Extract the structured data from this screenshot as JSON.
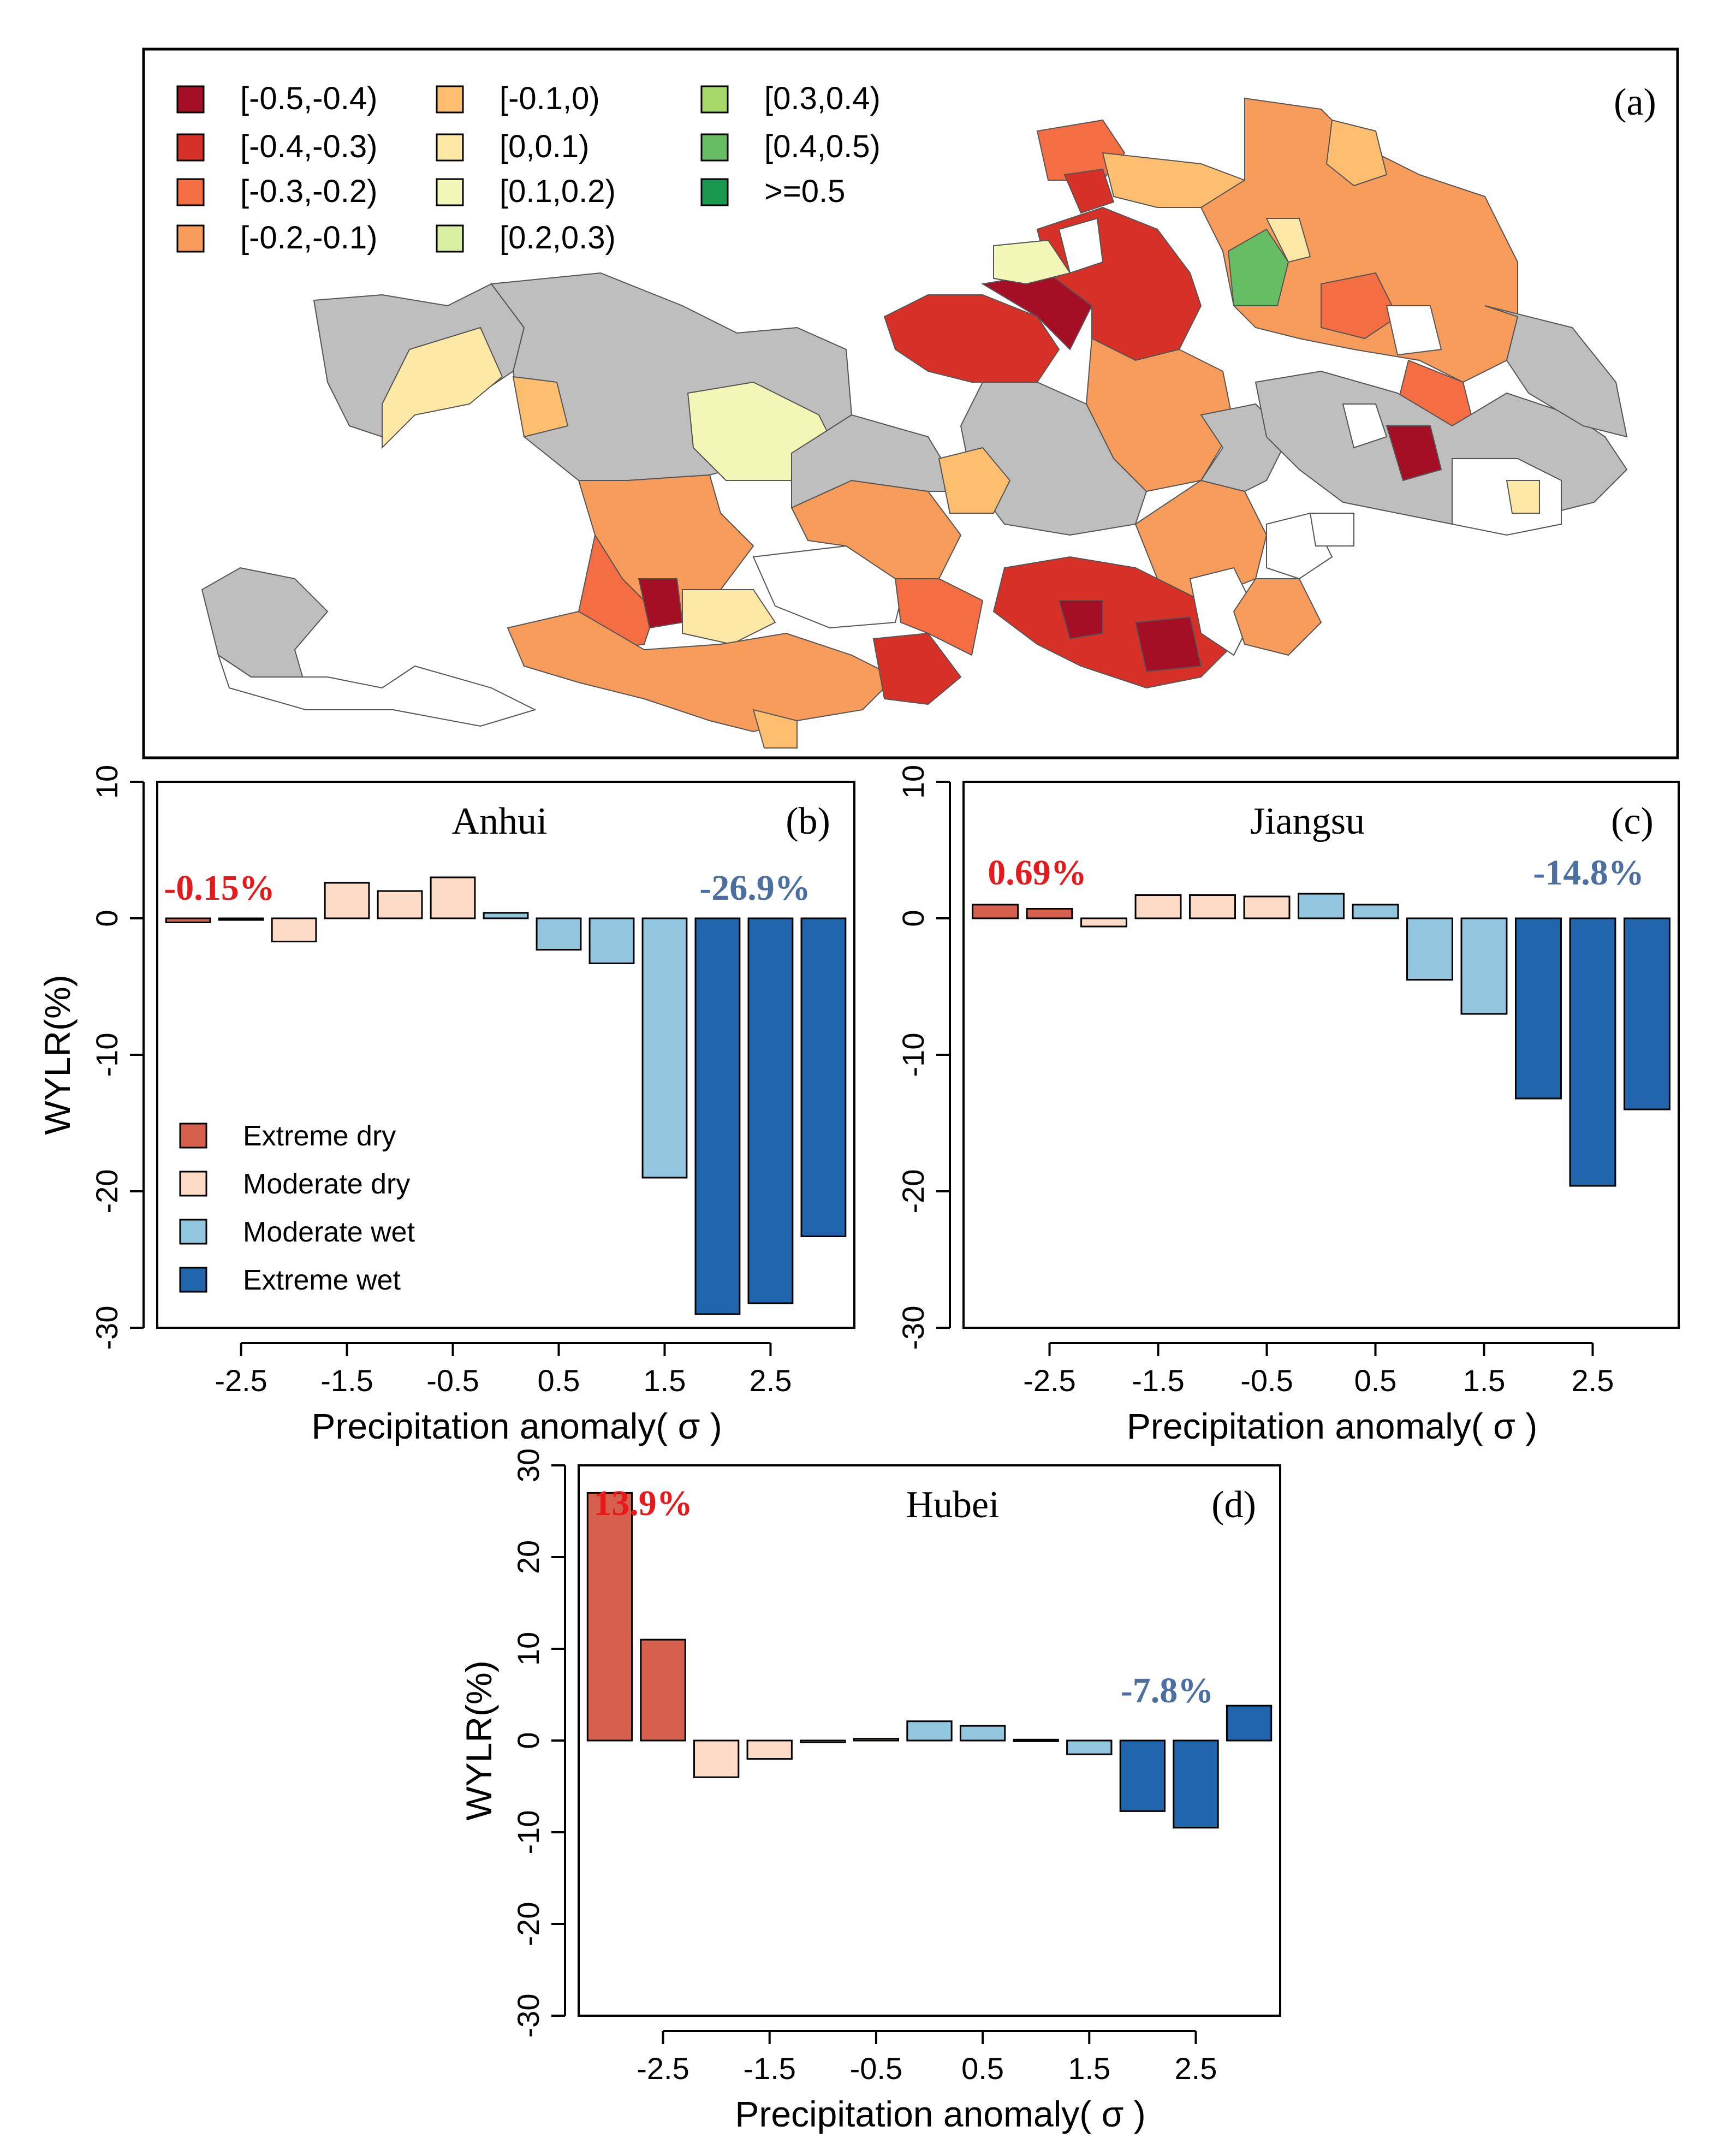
{
  "colors": {
    "extreme_dry": "#d6604d",
    "moderate_dry": "#fddbc7",
    "moderate_wet": "#92c5de",
    "extreme_wet": "#2166ac",
    "annot_dry": "#e41a1c",
    "annot_wet": "#4a6fa0",
    "no_data": "#bebebe"
  },
  "map": {
    "panel_label": "(a)",
    "legend": [
      {
        "label": "[-0.5,-0.4)",
        "color": "#a50f26"
      },
      {
        "label": "[-0.4,-0.3)",
        "color": "#d73027"
      },
      {
        "label": "[-0.3,-0.2)",
        "color": "#f46d43"
      },
      {
        "label": "[-0.2,-0.1)",
        "color": "#f89c5c"
      },
      {
        "label": "[-0.1,0)",
        "color": "#fdbf6f"
      },
      {
        "label": "[0,0.1)",
        "color": "#fee8a6"
      },
      {
        "label": "[0.1,0.2)",
        "color": "#f2f7b8"
      },
      {
        "label": "[0.2,0.3)",
        "color": "#d9f0a3"
      },
      {
        "label": "[0.3,0.4)",
        "color": "#a6d96a"
      },
      {
        "label": "[0.4,0.5)",
        "color": "#66bd63"
      },
      {
        "label": ">=0.5",
        "color": "#1a9850"
      }
    ]
  },
  "bar_legend": [
    "Extreme dry",
    "Moderate dry",
    "Moderate wet",
    "Extreme wet"
  ],
  "chart_data": [
    {
      "type": "bar",
      "title": "Anhui",
      "panel_label": "(b)",
      "ylabel": "WYLR(%)",
      "xlabel": "Precipitation anomaly( σ )",
      "ylim": [
        -30,
        10
      ],
      "yticks": [
        "-30",
        "-20",
        "-10",
        "0",
        "10"
      ],
      "xticks": [
        "-2.5",
        "-1.5",
        "-0.5",
        "0.5",
        "1.5",
        "2.5"
      ],
      "annot_dry": "-0.15%",
      "annot_wet": "-26.9%",
      "values": [
        -0.3,
        -0.1,
        -1.7,
        2.6,
        2.0,
        3.0,
        0.4,
        -2.3,
        -3.3,
        -19.0,
        -29.0,
        -28.2,
        -23.3
      ],
      "classes": [
        "ed",
        "ed",
        "md",
        "md",
        "md",
        "md",
        "mw",
        "mw",
        "mw",
        "mw",
        "ew",
        "ew",
        "ew"
      ]
    },
    {
      "type": "bar",
      "title": "Jiangsu",
      "panel_label": "(c)",
      "ylabel": "",
      "xlabel": "Precipitation anomaly( σ )",
      "ylim": [
        -30,
        10
      ],
      "yticks": [
        "-30",
        "-20",
        "-10",
        "0",
        "10"
      ],
      "xticks": [
        "-2.5",
        "-1.5",
        "-0.5",
        "0.5",
        "1.5",
        "2.5"
      ],
      "annot_dry": "0.69%",
      "annot_wet": "-14.8%",
      "values": [
        1.0,
        0.7,
        -0.6,
        1.7,
        1.7,
        1.6,
        1.8,
        1.0,
        -4.5,
        -7.0,
        -13.2,
        -19.6,
        -14.0
      ],
      "classes": [
        "ed",
        "ed",
        "md",
        "md",
        "md",
        "md",
        "mw",
        "mw",
        "mw",
        "mw",
        "ew",
        "ew",
        "ew"
      ]
    },
    {
      "type": "bar",
      "title": "Hubei",
      "panel_label": "(d)",
      "ylabel": "WYLR(%)",
      "xlabel": "Precipitation anomaly( σ )",
      "ylim": [
        -30,
        30
      ],
      "yticks": [
        "-30",
        "-20",
        "-10",
        "0",
        "10",
        "20",
        "30"
      ],
      "xticks": [
        "-2.5",
        "-1.5",
        "-0.5",
        "0.5",
        "1.5",
        "2.5"
      ],
      "annot_dry": "13.9%",
      "annot_wet": "-7.8%",
      "values": [
        27.0,
        11.0,
        -4.0,
        -2.0,
        -0.2,
        0.2,
        2.1,
        1.6,
        0.1,
        -1.5,
        -7.7,
        -9.5,
        3.8
      ],
      "classes": [
        "ed",
        "ed",
        "md",
        "md",
        "md",
        "md",
        "mw",
        "mw",
        "mw",
        "mw",
        "ew",
        "ew",
        "ew"
      ]
    }
  ]
}
